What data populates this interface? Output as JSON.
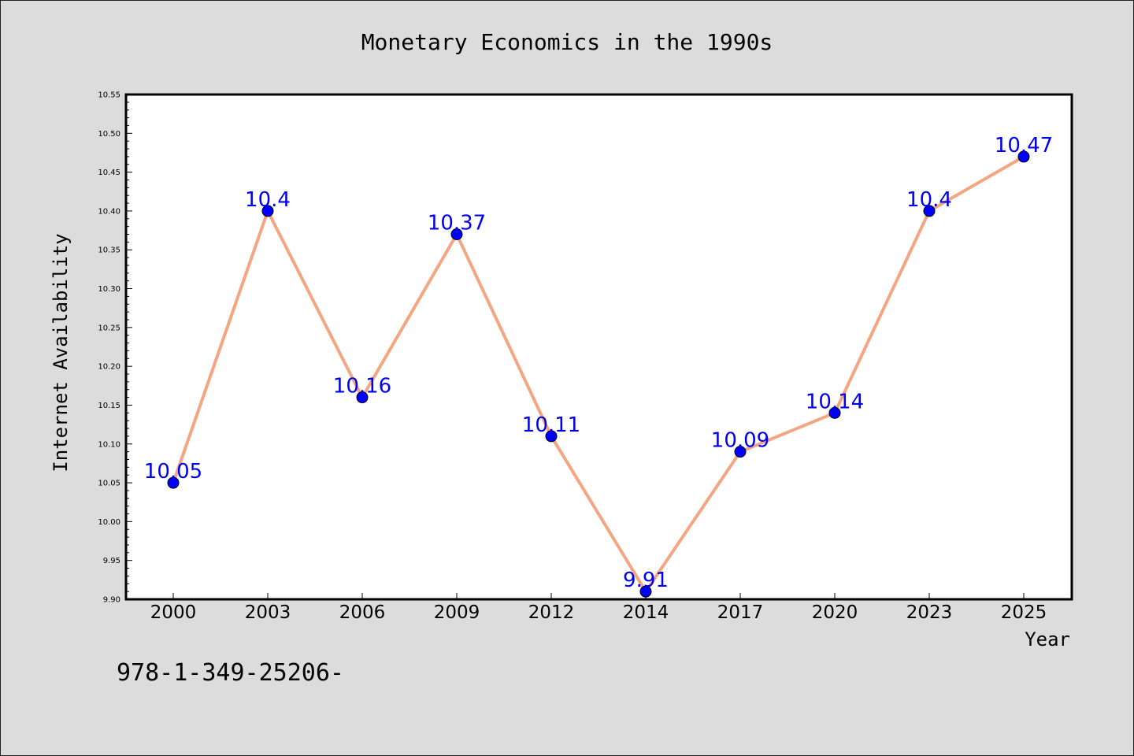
{
  "chart_data": {
    "type": "line",
    "title": "Monetary Economics in the 1990s",
    "xlabel": "Year",
    "ylabel": "Internet Availability",
    "categories": [
      "2000",
      "2003",
      "2006",
      "2009",
      "2012",
      "2014",
      "2017",
      "2020",
      "2023",
      "2025"
    ],
    "series": [
      {
        "values": [
          10.05,
          10.4,
          10.16,
          10.37,
          10.11,
          9.91,
          10.09,
          10.14,
          10.4,
          10.47
        ],
        "labels": [
          "10.05",
          "10.4",
          "10.16",
          "10.37",
          "10.11",
          "9.91",
          "10.09",
          "10.14",
          "10.4",
          "10.47"
        ],
        "line_color": "#f4a582",
        "marker_color": "#0000ff"
      }
    ],
    "ylim": [
      9.9,
      10.55
    ],
    "yticks": [
      "9.90",
      "9.95",
      "10.00",
      "10.05",
      "10.10",
      "10.15",
      "10.20",
      "10.25",
      "10.30",
      "10.35",
      "10.40",
      "10.45",
      "10.50",
      "10.55"
    ],
    "grid": false,
    "label_color": "#0000ee",
    "background_color": "#dcdcdc",
    "plot_background_color": "#ffffff"
  },
  "footnote": "978-1-349-25206-"
}
